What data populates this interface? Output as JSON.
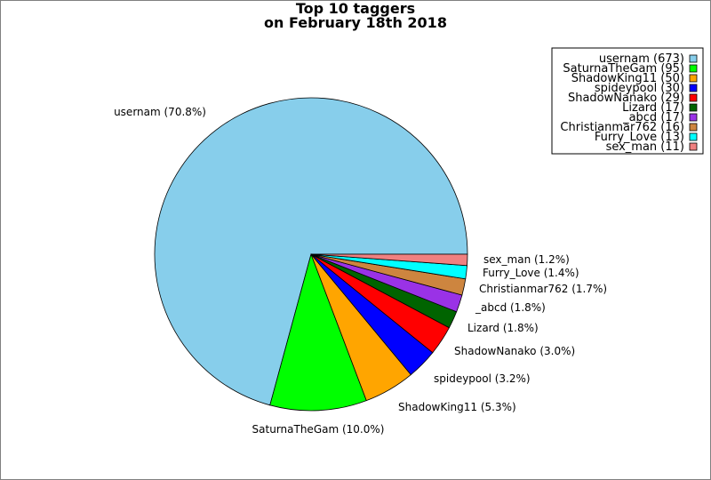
{
  "chart_data": {
    "type": "pie",
    "title": "Top 10 taggers",
    "subtitle": "on February 18th 2018",
    "legend_placement": "top-right",
    "slices": [
      {
        "name": "usernam",
        "value": 673,
        "percent_label": "usernam (70.8%)",
        "legend_label": "usernam (673)",
        "color": "#87ceeb"
      },
      {
        "name": "SaturnaTheGam",
        "value": 95,
        "percent_label": "SaturnaTheGam (10.0%)",
        "legend_label": "SaturnaTheGam (95)",
        "color": "#00ff00"
      },
      {
        "name": "ShadowKing11",
        "value": 50,
        "percent_label": "ShadowKing11 (5.3%)",
        "legend_label": "ShadowKing11 (50)",
        "color": "#ffa500"
      },
      {
        "name": "spideypool",
        "value": 30,
        "percent_label": "spideypool (3.2%)",
        "legend_label": "spideypool (30)",
        "color": "#0000ff"
      },
      {
        "name": "ShadowNanako",
        "value": 29,
        "percent_label": "ShadowNanako (3.0%)",
        "legend_label": "ShadowNanako (29)",
        "color": "#ff0000"
      },
      {
        "name": "Lizard",
        "value": 17,
        "percent_label": "Lizard (1.8%)",
        "legend_label": "Lizard (17)",
        "color": "#006400"
      },
      {
        "name": "_abcd",
        "value": 17,
        "percent_label": "_abcd (1.8%)",
        "legend_label": "_abcd (17)",
        "color": "#9a32e6"
      },
      {
        "name": "Christianmar762",
        "value": 16,
        "percent_label": "Christianmar762 (1.7%)",
        "legend_label": "Christianmar762 (16)",
        "color": "#cd853f"
      },
      {
        "name": "Furry_Love",
        "value": 13,
        "percent_label": "Furry_Love (1.4%)",
        "legend_label": "Furry_Love (13)",
        "color": "#00ffff"
      },
      {
        "name": "sex_man",
        "value": 11,
        "percent_label": "sex_man (1.2%)",
        "legend_label": "sex_man (11)",
        "color": "#f08080"
      }
    ]
  }
}
